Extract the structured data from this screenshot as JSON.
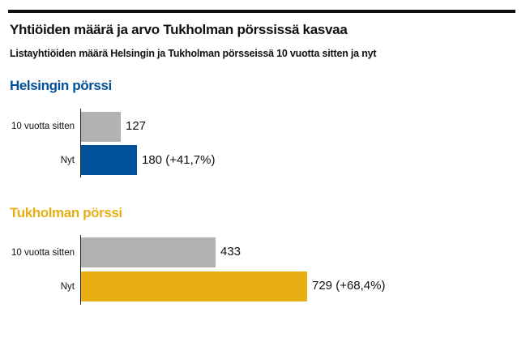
{
  "header": {
    "title": "Yhtiöiden määrä ja arvo Tukholman pörssissä kasvaa",
    "subtitle": "Listayhtiöiden määrä Helsingin ja Tukholman pörsseissä 10 vuotta sitten ja nyt"
  },
  "colors": {
    "helsinki": "#00509a",
    "tukholma": "#e8af14",
    "previous": "#b2b2b2"
  },
  "chart_data": [
    {
      "type": "bar",
      "orientation": "horizontal",
      "title": "Helsingin pörssi",
      "categories": [
        "10 vuotta sitten",
        "Nyt"
      ],
      "values": [
        127,
        180
      ],
      "labels": [
        "127",
        "180 (+41,7%)"
      ]
    },
    {
      "type": "bar",
      "orientation": "horizontal",
      "title": "Tukholman pörssi",
      "categories": [
        "10 vuotta sitten",
        "Nyt"
      ],
      "values": [
        433,
        729
      ],
      "labels": [
        "433",
        "729 (+68,4%)"
      ]
    }
  ]
}
